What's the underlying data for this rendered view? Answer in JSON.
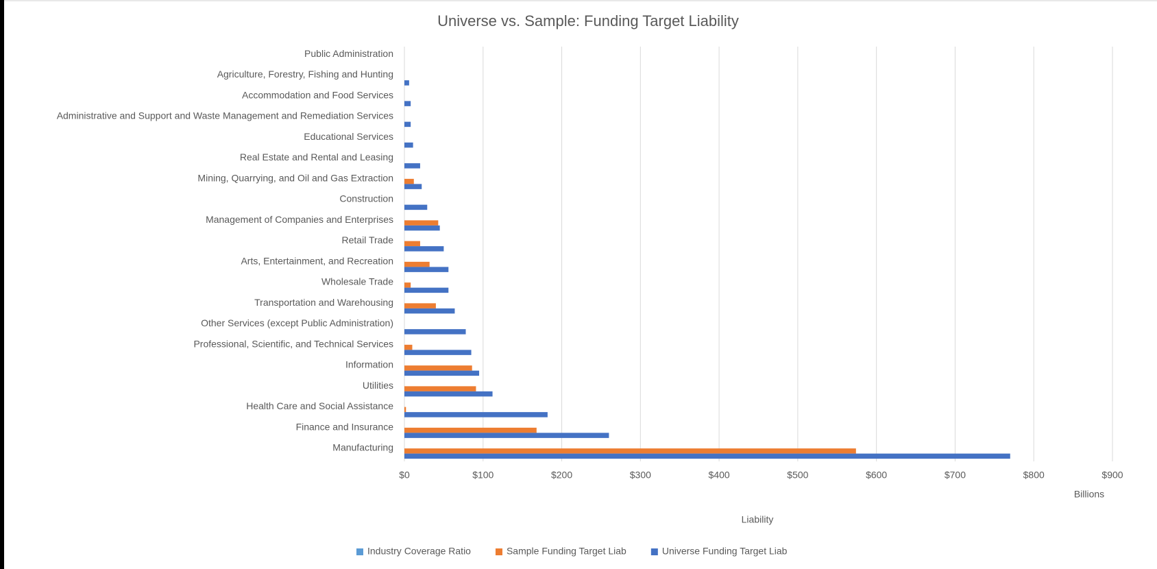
{
  "chart_data": {
    "type": "hbar",
    "title": "Universe vs. Sample: Funding Target Liability",
    "x_label": "Liability",
    "x_unit_label": "Billions",
    "categories": [
      "Manufacturing",
      "Finance and Insurance",
      "Health Care and Social Assistance",
      "Utilities",
      "Information",
      "Professional, Scientific, and Technical Services",
      "Other Services (except Public Administration)",
      "Transportation and Warehousing",
      "Wholesale Trade",
      "Arts, Entertainment, and Recreation",
      "Retail Trade",
      "Management of Companies and Enterprises",
      "Construction",
      "Mining, Quarrying, and Oil and Gas Extraction",
      "Real Estate and Rental and Leasing",
      "Educational Services",
      "Administrative and Support and Waste Management and Remediation Services",
      "Accommodation and Food Services",
      "Agriculture, Forestry, Fishing and Hunting",
      "Public Administration"
    ],
    "series": [
      {
        "name": "Industry Coverage Ratio",
        "color": "#5b9bd5",
        "values": [
          0,
          0,
          0,
          0,
          0,
          0,
          0,
          0,
          0,
          0,
          0,
          0,
          0,
          0,
          0,
          0,
          0,
          0,
          0,
          0
        ]
      },
      {
        "name": "Sample Funding Target Liab",
        "color": "#ed7d31",
        "values": [
          574,
          168,
          2,
          91,
          86,
          10,
          0,
          40,
          8,
          32,
          20,
          43,
          0,
          12,
          0,
          0,
          0,
          0,
          0,
          0
        ]
      },
      {
        "name": "Universe Funding Target Liab",
        "color": "#4472c4",
        "values": [
          770,
          260,
          182,
          112,
          95,
          85,
          78,
          64,
          56,
          56,
          50,
          45,
          29,
          22,
          20,
          11,
          8,
          8,
          6,
          0
        ]
      }
    ],
    "xlim": [
      0,
      900
    ],
    "xticks": [
      {
        "value": 0,
        "label": "$0"
      },
      {
        "value": 100,
        "label": "$100"
      },
      {
        "value": 200,
        "label": "$200"
      },
      {
        "value": 300,
        "label": "$300"
      },
      {
        "value": 400,
        "label": "$400"
      },
      {
        "value": 500,
        "label": "$500"
      },
      {
        "value": 600,
        "label": "$600"
      },
      {
        "value": 700,
        "label": "$700"
      },
      {
        "value": 800,
        "label": "$800"
      },
      {
        "value": 900,
        "label": "$900"
      }
    ],
    "grid": true,
    "legend": "bottom"
  }
}
